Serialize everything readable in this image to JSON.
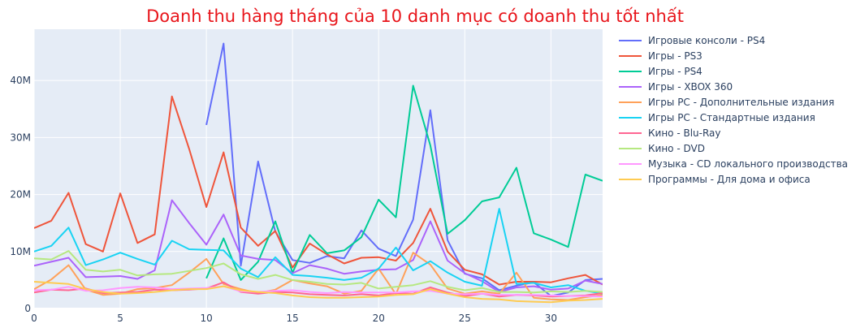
{
  "chart_data": {
    "type": "line",
    "title": "Doanh thu hàng tháng của 10 danh mục có doanh thu tốt nhất",
    "xlabel": "",
    "ylabel": "",
    "xlim": [
      0,
      33
    ],
    "ylim": [
      0,
      49000000
    ],
    "x_ticks": [
      0,
      5,
      10,
      15,
      20,
      25,
      30
    ],
    "y_ticks": [
      0,
      10000000,
      20000000,
      30000000,
      40000000
    ],
    "y_tick_labels": [
      "0",
      "10M",
      "20M",
      "30M",
      "40M"
    ],
    "grid": true,
    "legend_position": "right",
    "series": [
      {
        "name": "Игровые консоли - PS4",
        "color": "#636efa",
        "x": [
          10,
          11,
          12,
          13,
          14,
          15,
          16,
          17,
          18,
          19,
          20,
          21,
          22,
          23,
          24,
          25,
          26,
          27,
          28,
          29,
          30,
          31,
          32,
          33
        ],
        "y": [
          32200000,
          46500000,
          7500000,
          25800000,
          13500000,
          8500000,
          8000000,
          9200000,
          8800000,
          13700000,
          10500000,
          9200000,
          15600000,
          34800000,
          12000000,
          6100000,
          5300000,
          3200000,
          4000000,
          4600000,
          2200000,
          2800000,
          5000000,
          5200000
        ]
      },
      {
        "name": "Игры - PS3",
        "color": "#ef553b",
        "x": [
          0,
          1,
          2,
          3,
          4,
          5,
          6,
          7,
          8,
          9,
          10,
          11,
          12,
          13,
          14,
          15,
          16,
          17,
          18,
          19,
          20,
          21,
          22,
          23,
          24,
          25,
          26,
          27,
          28,
          29,
          30,
          31,
          32,
          33
        ],
        "y": [
          14100000,
          15400000,
          20300000,
          11300000,
          10000000,
          20200000,
          11500000,
          13000000,
          37200000,
          28000000,
          17800000,
          27400000,
          14200000,
          11000000,
          13600000,
          7200000,
          11400000,
          9500000,
          7900000,
          8900000,
          9000000,
          8400000,
          11500000,
          17500000,
          10000000,
          6800000,
          6000000,
          4200000,
          4700000,
          4700000,
          4600000,
          5300000,
          5900000,
          4200000
        ]
      },
      {
        "name": "Игры - PS4",
        "color": "#00cc96",
        "x": [
          10,
          11,
          12,
          13,
          14,
          15,
          16,
          17,
          18,
          19,
          20,
          21,
          22,
          23,
          24,
          25,
          26,
          27,
          28,
          29,
          30,
          31,
          32,
          33
        ],
        "y": [
          5300000,
          12300000,
          5000000,
          8200000,
          15300000,
          6300000,
          12900000,
          9700000,
          10200000,
          12500000,
          19100000,
          16000000,
          39100000,
          28600000,
          13100000,
          15500000,
          18800000,
          19500000,
          24700000,
          13200000,
          12100000,
          10800000,
          23500000,
          22400000
        ]
      },
      {
        "name": "Игры - XBOX 360",
        "color": "#ab63fa",
        "x": [
          0,
          1,
          2,
          3,
          4,
          5,
          6,
          7,
          8,
          9,
          10,
          11,
          12,
          13,
          14,
          15,
          16,
          17,
          18,
          19,
          20,
          21,
          22,
          23,
          24,
          25,
          26,
          27,
          28,
          29,
          30,
          31,
          32,
          33
        ],
        "y": [
          7500000,
          8200000,
          8900000,
          5500000,
          5600000,
          5700000,
          5200000,
          6700000,
          19000000,
          15000000,
          11200000,
          16500000,
          9300000,
          8700000,
          8500000,
          6200000,
          7600000,
          7000000,
          6100000,
          6500000,
          6800000,
          6900000,
          8500000,
          15300000,
          8400000,
          6200000,
          4800000,
          2900000,
          3700000,
          3900000,
          3300000,
          3500000,
          4900000,
          4300000
        ]
      },
      {
        "name": "Игры PC - Дополнительные издания",
        "color": "#ffa15a",
        "x": [
          0,
          1,
          2,
          3,
          4,
          5,
          6,
          7,
          8,
          9,
          10,
          11,
          12,
          13,
          14,
          15,
          16,
          17,
          18,
          19,
          20,
          21,
          22,
          23,
          24,
          25,
          26,
          27,
          28,
          29,
          30,
          31,
          32,
          33
        ],
        "y": [
          3400000,
          5100000,
          7600000,
          3300000,
          2400000,
          2600000,
          3400000,
          3600000,
          4100000,
          6300000,
          8700000,
          4300000,
          3400000,
          2700000,
          3300000,
          5000000,
          4400000,
          3900000,
          2600000,
          3100000,
          7000000,
          2500000,
          9800000,
          7700000,
          3500000,
          2600000,
          3000000,
          2600000,
          6300000,
          1900000,
          1600000,
          1500000,
          2000000,
          2400000
        ]
      },
      {
        "name": "Игры PC - Стандартные издания",
        "color": "#19d3f3",
        "x": [
          0,
          1,
          2,
          3,
          4,
          5,
          6,
          7,
          8,
          9,
          10,
          11,
          12,
          13,
          14,
          15,
          16,
          17,
          18,
          19,
          20,
          21,
          22,
          23,
          24,
          25,
          26,
          27,
          28,
          29,
          30,
          31,
          32,
          33
        ],
        "y": [
          10000000,
          11000000,
          14200000,
          7600000,
          8600000,
          9800000,
          8700000,
          7700000,
          11900000,
          10400000,
          10300000,
          10200000,
          7000000,
          5500000,
          9000000,
          5900000,
          5700000,
          5400000,
          5000000,
          5400000,
          7000000,
          10700000,
          6700000,
          8300000,
          6300000,
          4700000,
          4000000,
          17500000,
          4300000,
          4500000,
          3700000,
          4100000,
          3100000,
          2600000
        ]
      },
      {
        "name": "Кино - Blu-Ray",
        "color": "#ff6692",
        "x": [
          0,
          1,
          2,
          3,
          4,
          5,
          6,
          7,
          8,
          9,
          10,
          11,
          12,
          13,
          14,
          15,
          16,
          17,
          18,
          19,
          20,
          21,
          22,
          23,
          24,
          25,
          26,
          27,
          28,
          29,
          30,
          31,
          32,
          33
        ],
        "y": [
          2800000,
          3300000,
          3200000,
          3500000,
          2700000,
          2800000,
          2900000,
          3300000,
          3200000,
          3300000,
          3500000,
          4600000,
          2900000,
          2600000,
          2900000,
          2800000,
          2500000,
          2400000,
          2300000,
          2500000,
          2300000,
          2700000,
          2600000,
          3700000,
          2800000,
          2200000,
          2600000,
          2100000,
          2400000,
          2300000,
          2100000,
          2200000,
          2300000,
          2700000
        ]
      },
      {
        "name": "Кино - DVD",
        "color": "#b6e880",
        "x": [
          0,
          1,
          2,
          3,
          4,
          5,
          6,
          7,
          8,
          9,
          10,
          11,
          12,
          13,
          14,
          15,
          16,
          17,
          18,
          19,
          20,
          21,
          22,
          23,
          24,
          25,
          26,
          27,
          28,
          29,
          30,
          31,
          32,
          33
        ],
        "y": [
          8800000,
          8600000,
          10100000,
          6800000,
          6500000,
          6800000,
          5800000,
          6000000,
          6100000,
          6600000,
          7100000,
          7900000,
          6000000,
          5200000,
          5900000,
          5000000,
          4700000,
          4300000,
          4200000,
          4500000,
          3500000,
          3800000,
          4100000,
          4800000,
          3800000,
          3200000,
          3600000,
          2900000,
          2900000,
          2800000,
          3000000,
          2900000,
          3100000,
          2900000
        ]
      },
      {
        "name": "Музыка - CD локального производства",
        "color": "#ff97ff",
        "x": [
          0,
          1,
          2,
          3,
          4,
          5,
          6,
          7,
          8,
          9,
          10,
          11,
          12,
          13,
          14,
          15,
          16,
          17,
          18,
          19,
          20,
          21,
          22,
          23,
          24,
          25,
          26,
          27,
          28,
          29,
          30,
          31,
          32,
          33
        ],
        "y": [
          3200000,
          3300000,
          3800000,
          3100000,
          3200000,
          3600000,
          3800000,
          3700000,
          3400000,
          3500000,
          3600000,
          3900000,
          3000000,
          2900000,
          3100000,
          3200000,
          2900000,
          2700000,
          2900000,
          2800000,
          2800000,
          2800000,
          3000000,
          3100000,
          2600000,
          2500000,
          2600000,
          2400000,
          2400000,
          2400000,
          2300000,
          2200000,
          2200000,
          2100000
        ]
      },
      {
        "name": "Программы - Для дома и офиса",
        "color": "#fecb52",
        "x": [
          0,
          1,
          2,
          3,
          4,
          5,
          6,
          7,
          8,
          9,
          10,
          11,
          12,
          13,
          14,
          15,
          16,
          17,
          18,
          19,
          20,
          21,
          22,
          23,
          24,
          25,
          26,
          27,
          28,
          29,
          30,
          31,
          32,
          33
        ],
        "y": [
          4700000,
          4500000,
          4300000,
          3400000,
          2900000,
          2600000,
          2700000,
          2900000,
          3200000,
          3400000,
          3400000,
          3900000,
          3200000,
          2900000,
          2700000,
          2300000,
          2000000,
          1900000,
          1900000,
          2000000,
          2100000,
          2400000,
          2500000,
          3400000,
          2600000,
          2000000,
          1700000,
          1600000,
          1300000,
          1200000,
          1100000,
          1400000,
          1500000,
          1700000
        ]
      }
    ]
  }
}
